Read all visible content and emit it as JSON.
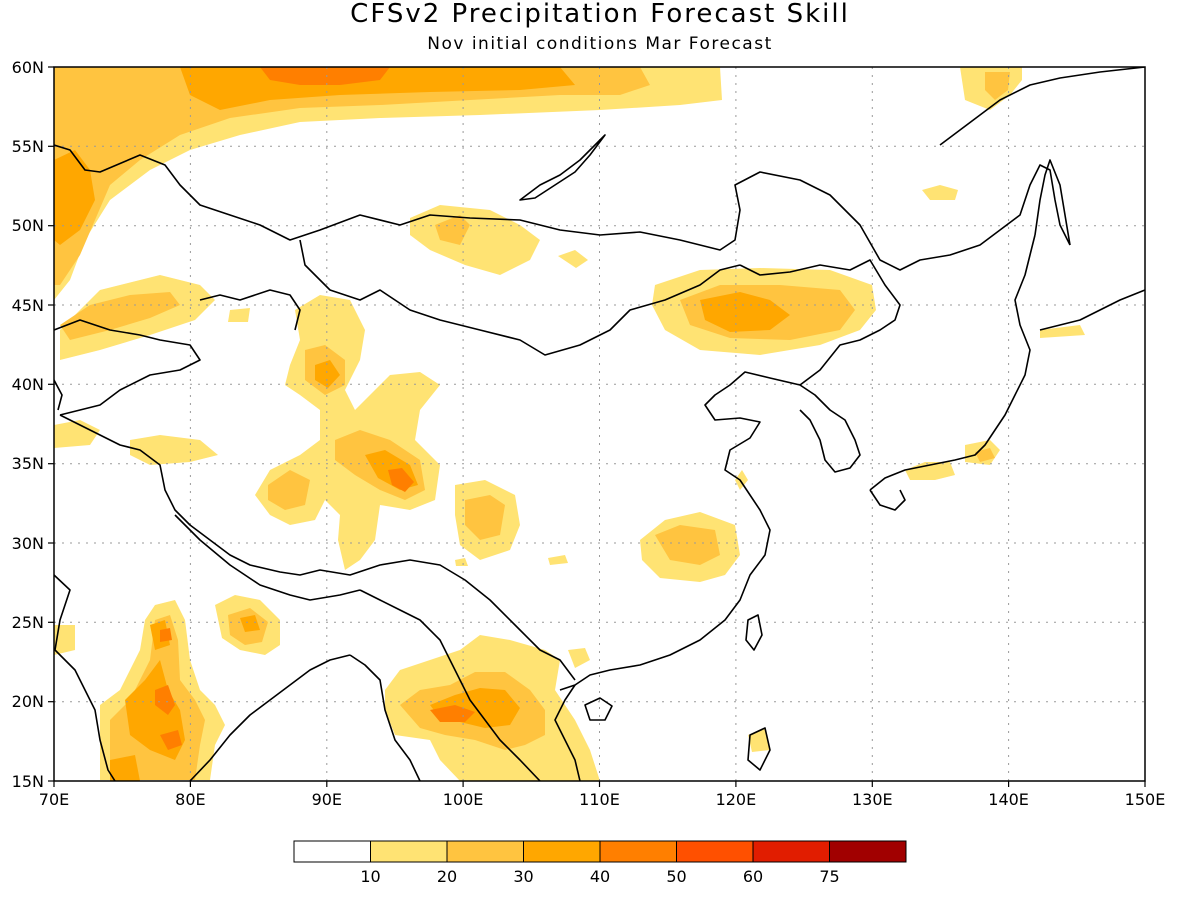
{
  "title": "CFSv2 Precipitation Forecast Skill",
  "subtitle": "Nov initial conditions  Mar Forecast",
  "map": {
    "lon_range": [
      70,
      150
    ],
    "lat_range": [
      15,
      60
    ],
    "lon_ticks": [
      "70E",
      "80E",
      "90E",
      "100E",
      "110E",
      "120E",
      "130E",
      "140E",
      "150E"
    ],
    "lat_ticks": [
      "60N",
      "55N",
      "50N",
      "45N",
      "40N",
      "35N",
      "30N",
      "25N",
      "20N",
      "15N"
    ],
    "grid": true
  },
  "colorbar": {
    "labels": [
      "10",
      "20",
      "30",
      "40",
      "50",
      "60",
      "75"
    ],
    "colors": [
      "#ffffff",
      "#ffe373",
      "#ffc440",
      "#ffa700",
      "#ff7f00",
      "#ff5000",
      "#e11d00",
      "#a10000"
    ]
  },
  "colors": {
    "level1": "#ffe373",
    "level2": "#ffc440",
    "level3": "#ffa700",
    "level4": "#ff7f00",
    "coast": "#000000",
    "grid": "#9a9a9a"
  }
}
